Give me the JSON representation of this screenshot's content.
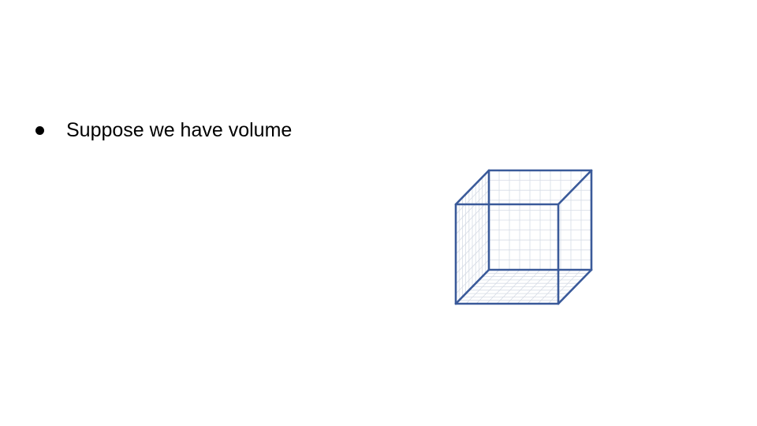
{
  "slide": {
    "bullets": [
      {
        "text": "Suppose we have volume"
      }
    ]
  },
  "figure": {
    "icon": "wireframe-cube-icon",
    "colors": {
      "edge": "#3a5a9a",
      "grid": "#d6dce6"
    }
  }
}
